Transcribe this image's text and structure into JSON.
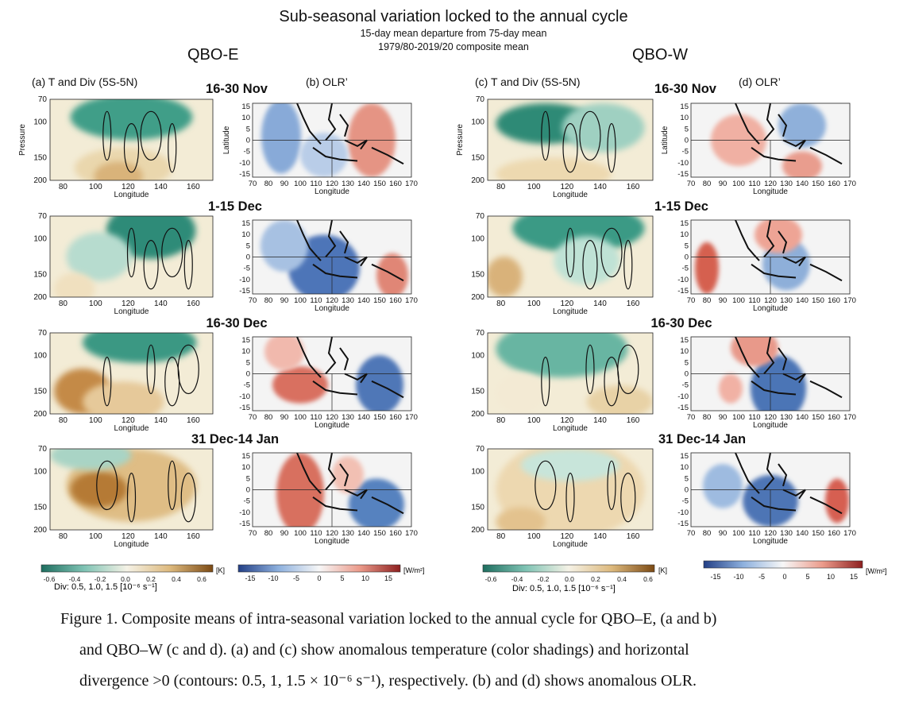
{
  "figure": {
    "title": "Sub-seasonal variation locked to the annual cycle",
    "subtitle1": "15-day mean departure from 75-day mean",
    "subtitle2": "1979/80-2019/20 composite mean",
    "col_left": "QBO-E",
    "col_right": "QBO-W",
    "panel_a": "(a)  T and Div  (5S-5N)",
    "panel_b": "(b)  OLR’",
    "panel_c": "(c)  T and Div  (5S-5N)",
    "panel_d": "(d)  OLR’",
    "periods": [
      "16-30 Nov",
      "1-15 Dec",
      "16-30 Dec",
      "31 Dec-14 Jan"
    ],
    "pressure_axis": {
      "label": "Pressure",
      "ticks": [
        "70",
        "100",
        "150",
        "200"
      ]
    },
    "longitude_axis_td": {
      "label": "Longitude",
      "ticks": [
        "80",
        "100",
        "120",
        "140",
        "160"
      ]
    },
    "latitude_axis": {
      "label": "Latitude",
      "ticks": [
        "15",
        "10",
        "5",
        "0",
        "-5",
        "-10",
        "-15"
      ]
    },
    "longitude_axis_olr": {
      "label": "Longitude",
      "ticks": [
        "70",
        "80",
        "90",
        "100",
        "110",
        "120",
        "130",
        "140",
        "150",
        "160",
        "170"
      ]
    },
    "colorbar_t": {
      "ticks": [
        "-0.6",
        "-0.4",
        "-0.2",
        "0.0",
        "0.2",
        "0.4",
        "0.6"
      ],
      "unit": "[K]",
      "div_label": "Div:  0.5,  1.0, 1.5 [10⁻⁶ s⁻¹]"
    },
    "colorbar_olr": {
      "ticks": [
        "-15",
        "-10",
        "-5",
        "0",
        "5",
        "10",
        "15"
      ],
      "unit": "[W/m²]"
    },
    "colors": {
      "cool": "#3a9a86",
      "warm": "#a8671f",
      "olr_neg": "#3b6cb0",
      "olr_pos": "#c84a3c"
    }
  },
  "caption": {
    "line1": "Figure 1.    Composite means of intra-seasonal variation locked to the annual cycle for QBO–E, (a and b)",
    "line2": "and QBO–W (c and d). (a) and (c) show anomalous temperature (color shadings) and horizontal",
    "line3": "divergence >0 (contours: 0.5, 1, 1.5 × 10⁻⁶ s⁻¹), respectively. (b) and (d) shows anomalous OLR."
  }
}
